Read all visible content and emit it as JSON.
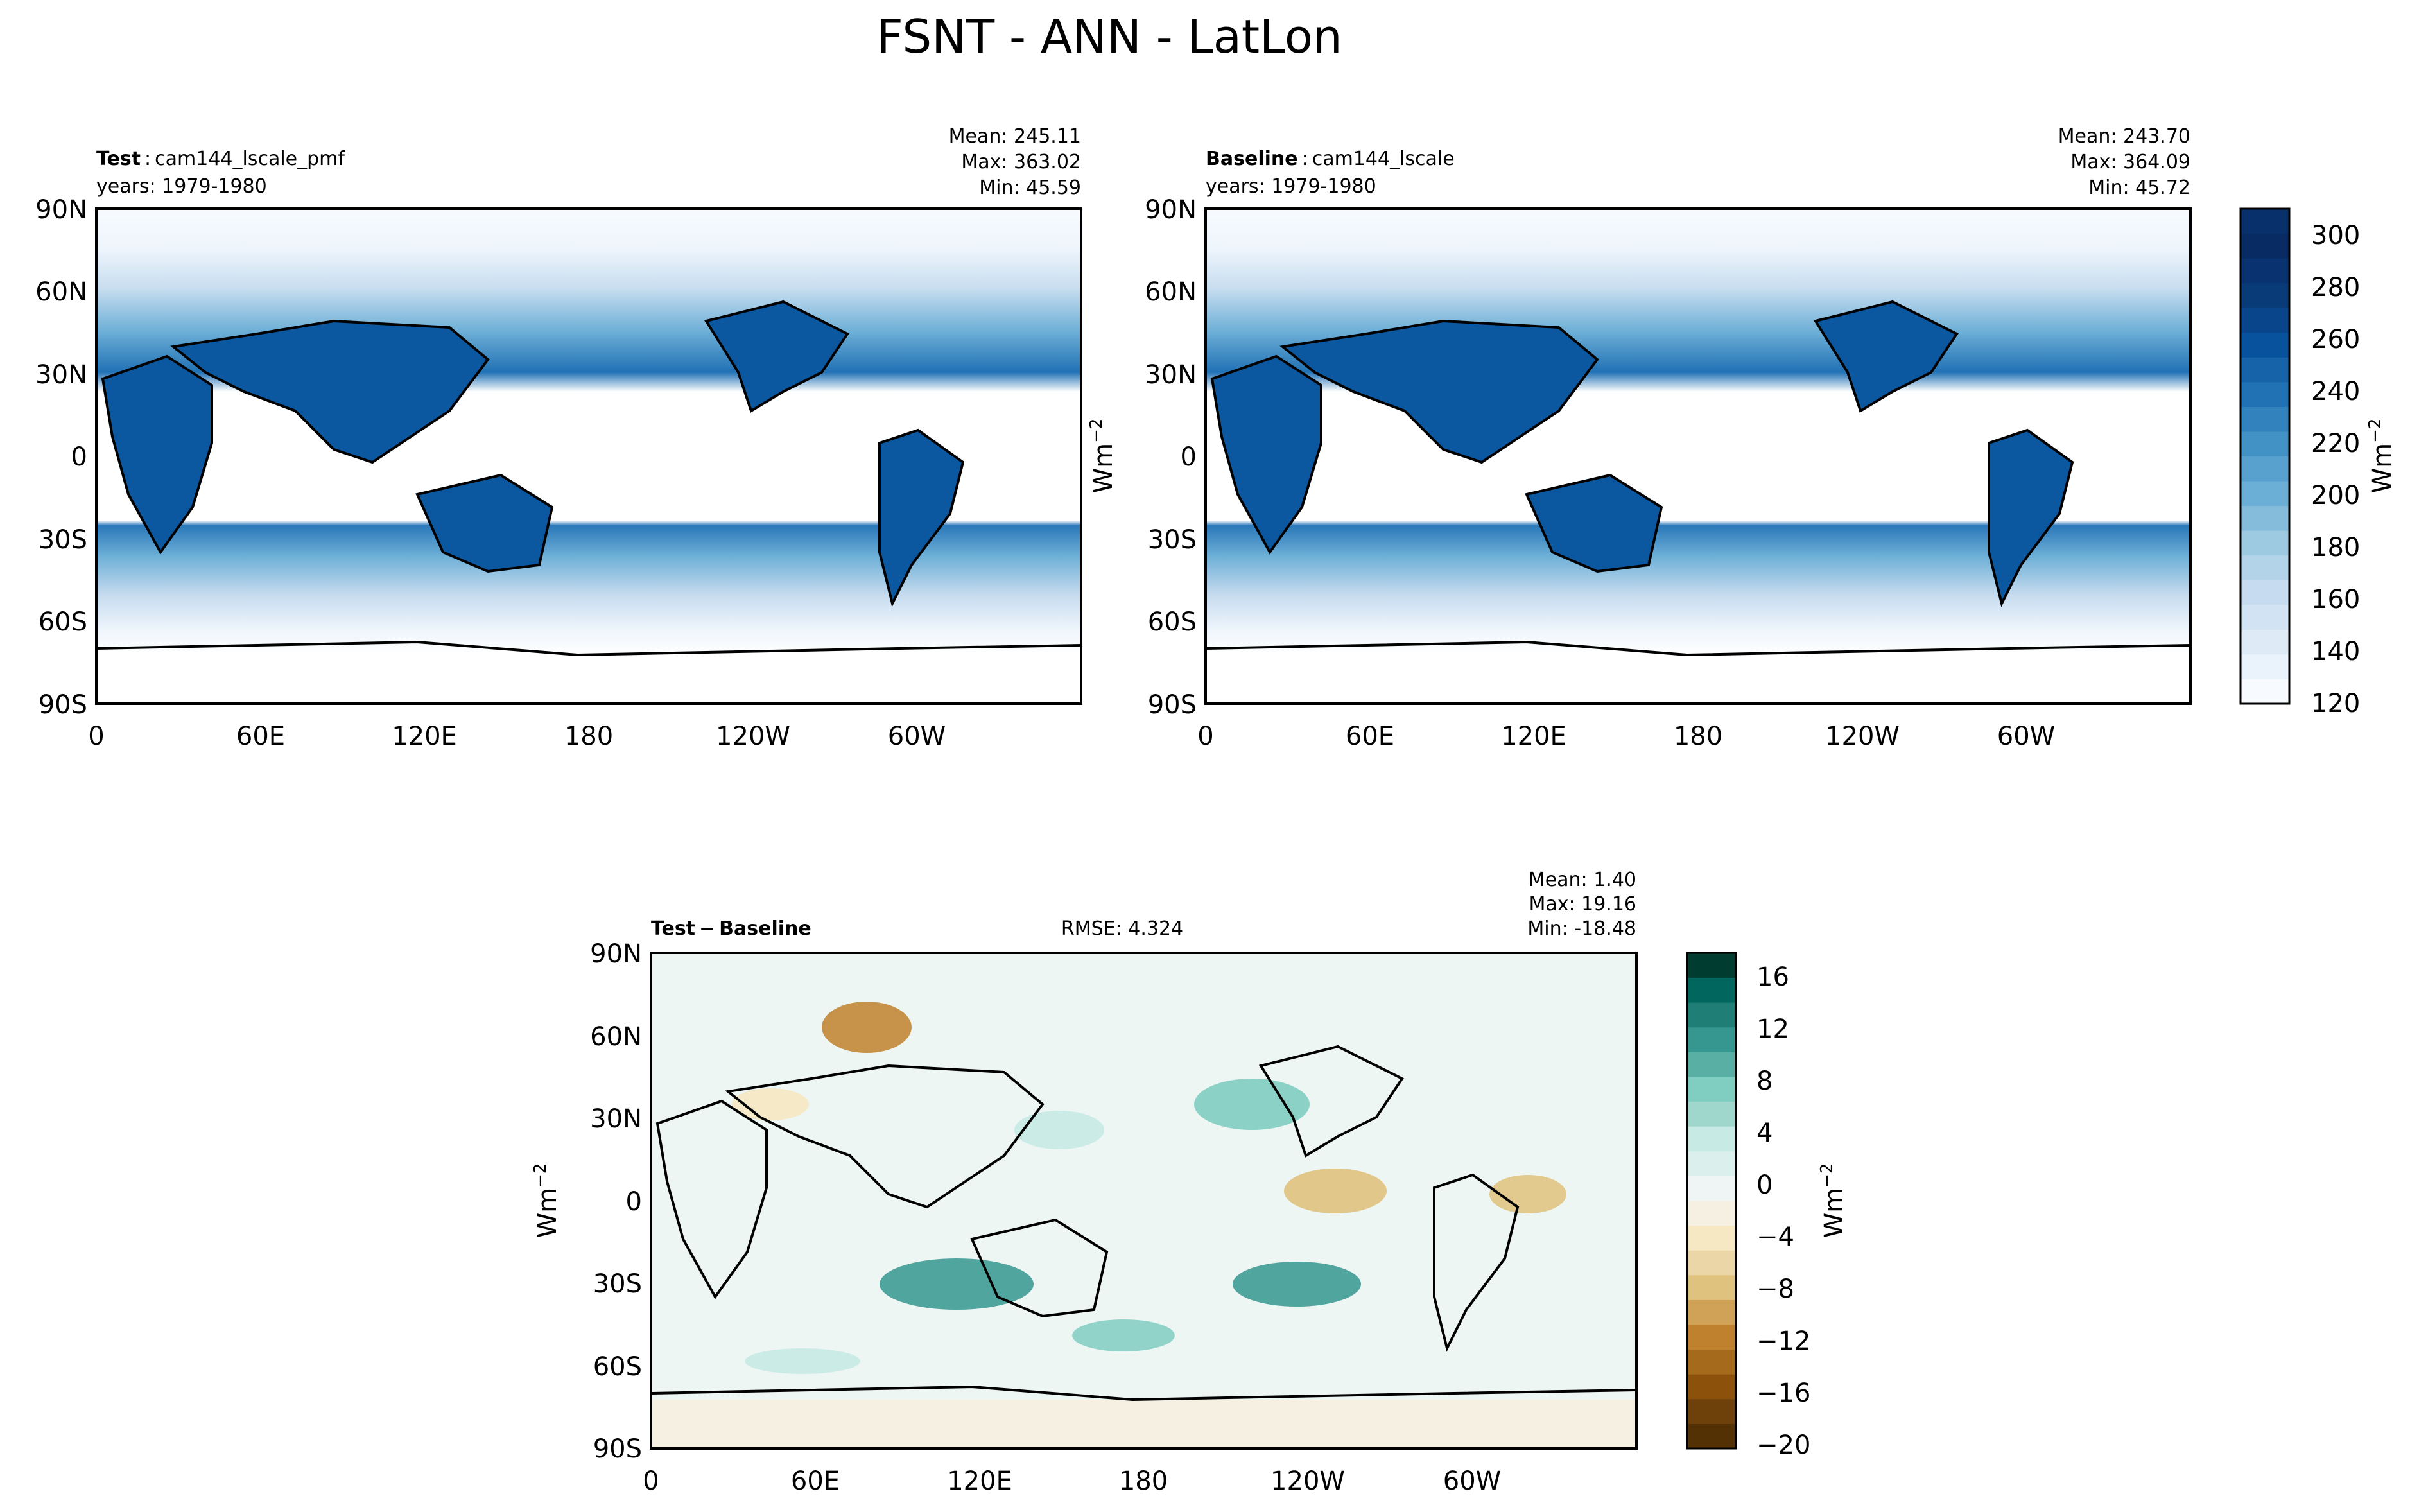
{
  "figure": {
    "title": "FSNT - ANN - LatLon"
  },
  "panels": {
    "test": {
      "label": "Test",
      "name": "cam144_lscale_pmf",
      "years": "years: 1979-1980",
      "mean": "Mean: 245.11",
      "max": "Max: 363.02",
      "min": "Min: 45.59"
    },
    "baseline": {
      "label": "Baseline",
      "name": "cam144_lscale",
      "years": "years: 1979-1980",
      "mean": "Mean: 243.70",
      "max": "Max: 364.09",
      "min": "Min: 45.72"
    },
    "diff": {
      "label_a": "Test",
      "label_b": "Baseline",
      "rmse": "RMSE: 4.324",
      "mean": "Mean:  1.40",
      "max": "Max: 19.16",
      "min": "Min: -18.48"
    }
  },
  "axes": {
    "lat_ticks": [
      "90N",
      "60N",
      "30N",
      "0",
      "30S",
      "60S",
      "90S"
    ],
    "lon_ticks": [
      "0",
      "60E",
      "120E",
      "180",
      "120W",
      "60W"
    ],
    "units": "Wm",
    "units_sup": "−2"
  },
  "chart_data": [
    {
      "type": "heatmap",
      "title": "Test : cam144_lscale_pmf",
      "colorscale": "Blues",
      "levels": [
        120,
        130,
        140,
        150,
        160,
        170,
        180,
        190,
        200,
        210,
        220,
        230,
        240,
        250,
        260,
        270,
        280,
        290,
        300,
        310
      ],
      "stats": {
        "mean": 245.11,
        "max": 363.02,
        "min": 45.59
      }
    },
    {
      "type": "heatmap",
      "title": "Baseline : cam144_lscale",
      "colorscale": "Blues",
      "levels": [
        120,
        130,
        140,
        150,
        160,
        170,
        180,
        190,
        200,
        210,
        220,
        230,
        240,
        250,
        260,
        270,
        280,
        290,
        300,
        310
      ],
      "stats": {
        "mean": 243.7,
        "max": 364.09,
        "min": 45.72
      }
    },
    {
      "type": "heatmap",
      "title": "Test − Baseline",
      "colorscale": "BrBG",
      "levels": [
        -20,
        -18,
        -16,
        -14,
        -12,
        -10,
        -8,
        -6,
        -4,
        -2,
        0,
        2,
        4,
        6,
        8,
        10,
        12,
        14,
        16,
        18
      ],
      "stats": {
        "mean": 1.4,
        "max": 19.16,
        "min": -18.48,
        "rmse": 4.324
      }
    }
  ],
  "colorbars": {
    "main": {
      "ticks": [
        "300",
        "280",
        "260",
        "240",
        "220",
        "200",
        "180",
        "160",
        "140",
        "120"
      ]
    },
    "diff": {
      "ticks": [
        "16",
        "12",
        "8",
        "4",
        "0",
        "−4",
        "−8",
        "−12",
        "−16",
        "−20"
      ]
    }
  },
  "colors": {
    "blues": [
      "#f7fbff",
      "#eaf3fb",
      "#deebf7",
      "#d2e3f3",
      "#c6dbef",
      "#b3d3e8",
      "#9ecae1",
      "#85bcdc",
      "#6baed6",
      "#58a1cf",
      "#4292c6",
      "#3282be",
      "#2171b5",
      "#1663aa",
      "#08519c",
      "#08458a",
      "#083b78",
      "#083370",
      "#082b64",
      "#08306b"
    ],
    "brbg": [
      "#543005",
      "#6e410a",
      "#8c510a",
      "#a66a1d",
      "#bf812d",
      "#cfa257",
      "#dfc27d",
      "#ead6a6",
      "#f6e8c3",
      "#f5f0e2",
      "#eef5f4",
      "#dbf0ec",
      "#c7eae5",
      "#9fd7cd",
      "#80cdc1",
      "#5aafa5",
      "#35978f",
      "#1f7f76",
      "#01665e",
      "#003c30"
    ]
  }
}
